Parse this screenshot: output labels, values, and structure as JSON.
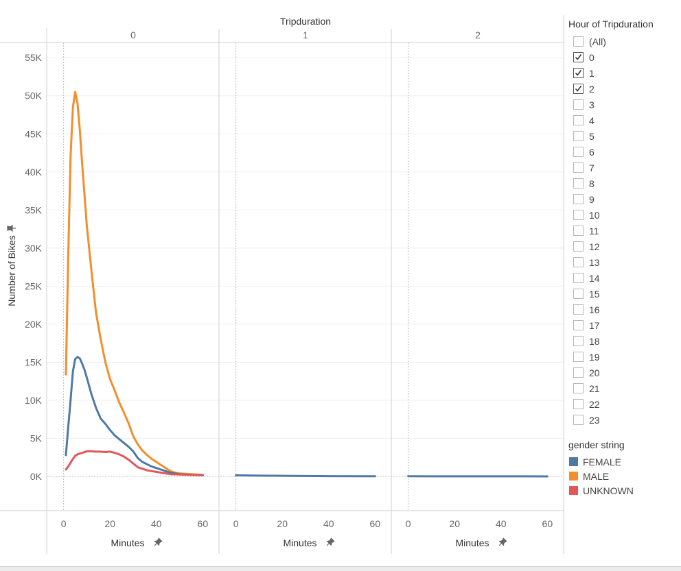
{
  "chart_data": {
    "type": "line",
    "column_header": "Tripduration",
    "panels": [
      "0",
      "1",
      "2"
    ],
    "xlabel": "Minutes",
    "ylabel": "Number of Bikes",
    "xlim": [
      -7,
      67
    ],
    "ylim": [
      -4500,
      57000
    ],
    "xticks": [
      0,
      20,
      40,
      60
    ],
    "yticks": [
      0,
      5000,
      10000,
      15000,
      20000,
      25000,
      30000,
      35000,
      40000,
      45000,
      50000,
      55000
    ],
    "ytick_labels": [
      "0K",
      "5K",
      "10K",
      "15K",
      "20K",
      "25K",
      "30K",
      "35K",
      "40K",
      "45K",
      "50K",
      "55K"
    ],
    "series": [
      {
        "name": "MALE",
        "color": "#f28e2b",
        "panel": 0,
        "points": [
          [
            1,
            13400
          ],
          [
            2,
            29000
          ],
          [
            3,
            42000
          ],
          [
            4,
            48500
          ],
          [
            5,
            50500
          ],
          [
            6,
            49000
          ],
          [
            7,
            45500
          ],
          [
            8,
            41000
          ],
          [
            9,
            37000
          ],
          [
            10,
            33000
          ],
          [
            12,
            27000
          ],
          [
            14,
            21500
          ],
          [
            16,
            18000
          ],
          [
            18,
            15000
          ],
          [
            20,
            12800
          ],
          [
            22,
            11300
          ],
          [
            24,
            9700
          ],
          [
            26,
            8400
          ],
          [
            28,
            7000
          ],
          [
            30,
            5300
          ],
          [
            32,
            4200
          ],
          [
            34,
            3400
          ],
          [
            36,
            2800
          ],
          [
            38,
            2300
          ],
          [
            40,
            1900
          ],
          [
            42,
            1500
          ],
          [
            44,
            1100
          ],
          [
            46,
            700
          ],
          [
            48,
            500
          ],
          [
            50,
            400
          ],
          [
            55,
            300
          ],
          [
            60,
            200
          ]
        ]
      },
      {
        "name": "FEMALE",
        "color": "#4e79a7",
        "panel": 0,
        "points": [
          [
            1,
            2800
          ],
          [
            2,
            6500
          ],
          [
            3,
            10000
          ],
          [
            4,
            13800
          ],
          [
            5,
            15400
          ],
          [
            6,
            15700
          ],
          [
            7,
            15500
          ],
          [
            8,
            14800
          ],
          [
            9,
            14000
          ],
          [
            10,
            13000
          ],
          [
            12,
            10800
          ],
          [
            14,
            9000
          ],
          [
            16,
            7600
          ],
          [
            18,
            6900
          ],
          [
            20,
            6100
          ],
          [
            22,
            5400
          ],
          [
            24,
            4900
          ],
          [
            26,
            4400
          ],
          [
            28,
            3900
          ],
          [
            30,
            3300
          ],
          [
            32,
            2400
          ],
          [
            34,
            1900
          ],
          [
            36,
            1600
          ],
          [
            38,
            1300
          ],
          [
            40,
            1100
          ],
          [
            42,
            900
          ],
          [
            44,
            700
          ],
          [
            46,
            500
          ],
          [
            48,
            400
          ],
          [
            50,
            300
          ],
          [
            55,
            200
          ],
          [
            60,
            150
          ]
        ]
      },
      {
        "name": "UNKNOWN",
        "color": "#e15759",
        "panel": 0,
        "points": [
          [
            1,
            900
          ],
          [
            2,
            1300
          ],
          [
            3,
            1800
          ],
          [
            4,
            2300
          ],
          [
            5,
            2700
          ],
          [
            6,
            2900
          ],
          [
            8,
            3100
          ],
          [
            10,
            3300
          ],
          [
            12,
            3300
          ],
          [
            14,
            3250
          ],
          [
            16,
            3250
          ],
          [
            18,
            3200
          ],
          [
            20,
            3250
          ],
          [
            22,
            3100
          ],
          [
            24,
            2900
          ],
          [
            26,
            2600
          ],
          [
            28,
            2200
          ],
          [
            30,
            1700
          ],
          [
            32,
            1200
          ],
          [
            34,
            1000
          ],
          [
            36,
            800
          ],
          [
            38,
            700
          ],
          [
            40,
            600
          ],
          [
            42,
            500
          ],
          [
            44,
            400
          ],
          [
            46,
            300
          ],
          [
            50,
            250
          ],
          [
            55,
            200
          ],
          [
            60,
            200
          ]
        ]
      },
      {
        "name": "FEMALE",
        "color": "#4e79a7",
        "panel": 1,
        "points": [
          [
            0,
            150
          ],
          [
            10,
            100
          ],
          [
            20,
            80
          ],
          [
            30,
            60
          ],
          [
            40,
            40
          ],
          [
            50,
            30
          ],
          [
            60,
            20
          ]
        ]
      },
      {
        "name": "FEMALE",
        "color": "#4e79a7",
        "panel": 2,
        "points": [
          [
            0,
            20
          ],
          [
            10,
            15
          ],
          [
            20,
            12
          ],
          [
            30,
            10
          ],
          [
            40,
            8
          ],
          [
            50,
            8
          ],
          [
            60,
            5
          ]
        ]
      }
    ]
  },
  "filter": {
    "title": "Hour of Tripduration",
    "items": [
      {
        "label": "(All)",
        "checked": false
      },
      {
        "label": "0",
        "checked": true
      },
      {
        "label": "1",
        "checked": true
      },
      {
        "label": "2",
        "checked": true
      },
      {
        "label": "3",
        "checked": false
      },
      {
        "label": "4",
        "checked": false
      },
      {
        "label": "5",
        "checked": false
      },
      {
        "label": "6",
        "checked": false
      },
      {
        "label": "7",
        "checked": false
      },
      {
        "label": "8",
        "checked": false
      },
      {
        "label": "9",
        "checked": false
      },
      {
        "label": "10",
        "checked": false
      },
      {
        "label": "11",
        "checked": false
      },
      {
        "label": "12",
        "checked": false
      },
      {
        "label": "13",
        "checked": false
      },
      {
        "label": "14",
        "checked": false
      },
      {
        "label": "15",
        "checked": false
      },
      {
        "label": "16",
        "checked": false
      },
      {
        "label": "17",
        "checked": false
      },
      {
        "label": "18",
        "checked": false
      },
      {
        "label": "19",
        "checked": false
      },
      {
        "label": "20",
        "checked": false
      },
      {
        "label": "21",
        "checked": false
      },
      {
        "label": "22",
        "checked": false
      },
      {
        "label": "23",
        "checked": false
      }
    ]
  },
  "legend": {
    "title": "gender string",
    "items": [
      {
        "label": "FEMALE",
        "color": "#4e79a7"
      },
      {
        "label": "MALE",
        "color": "#f28e2b"
      },
      {
        "label": "UNKNOWN",
        "color": "#e15759"
      }
    ]
  }
}
